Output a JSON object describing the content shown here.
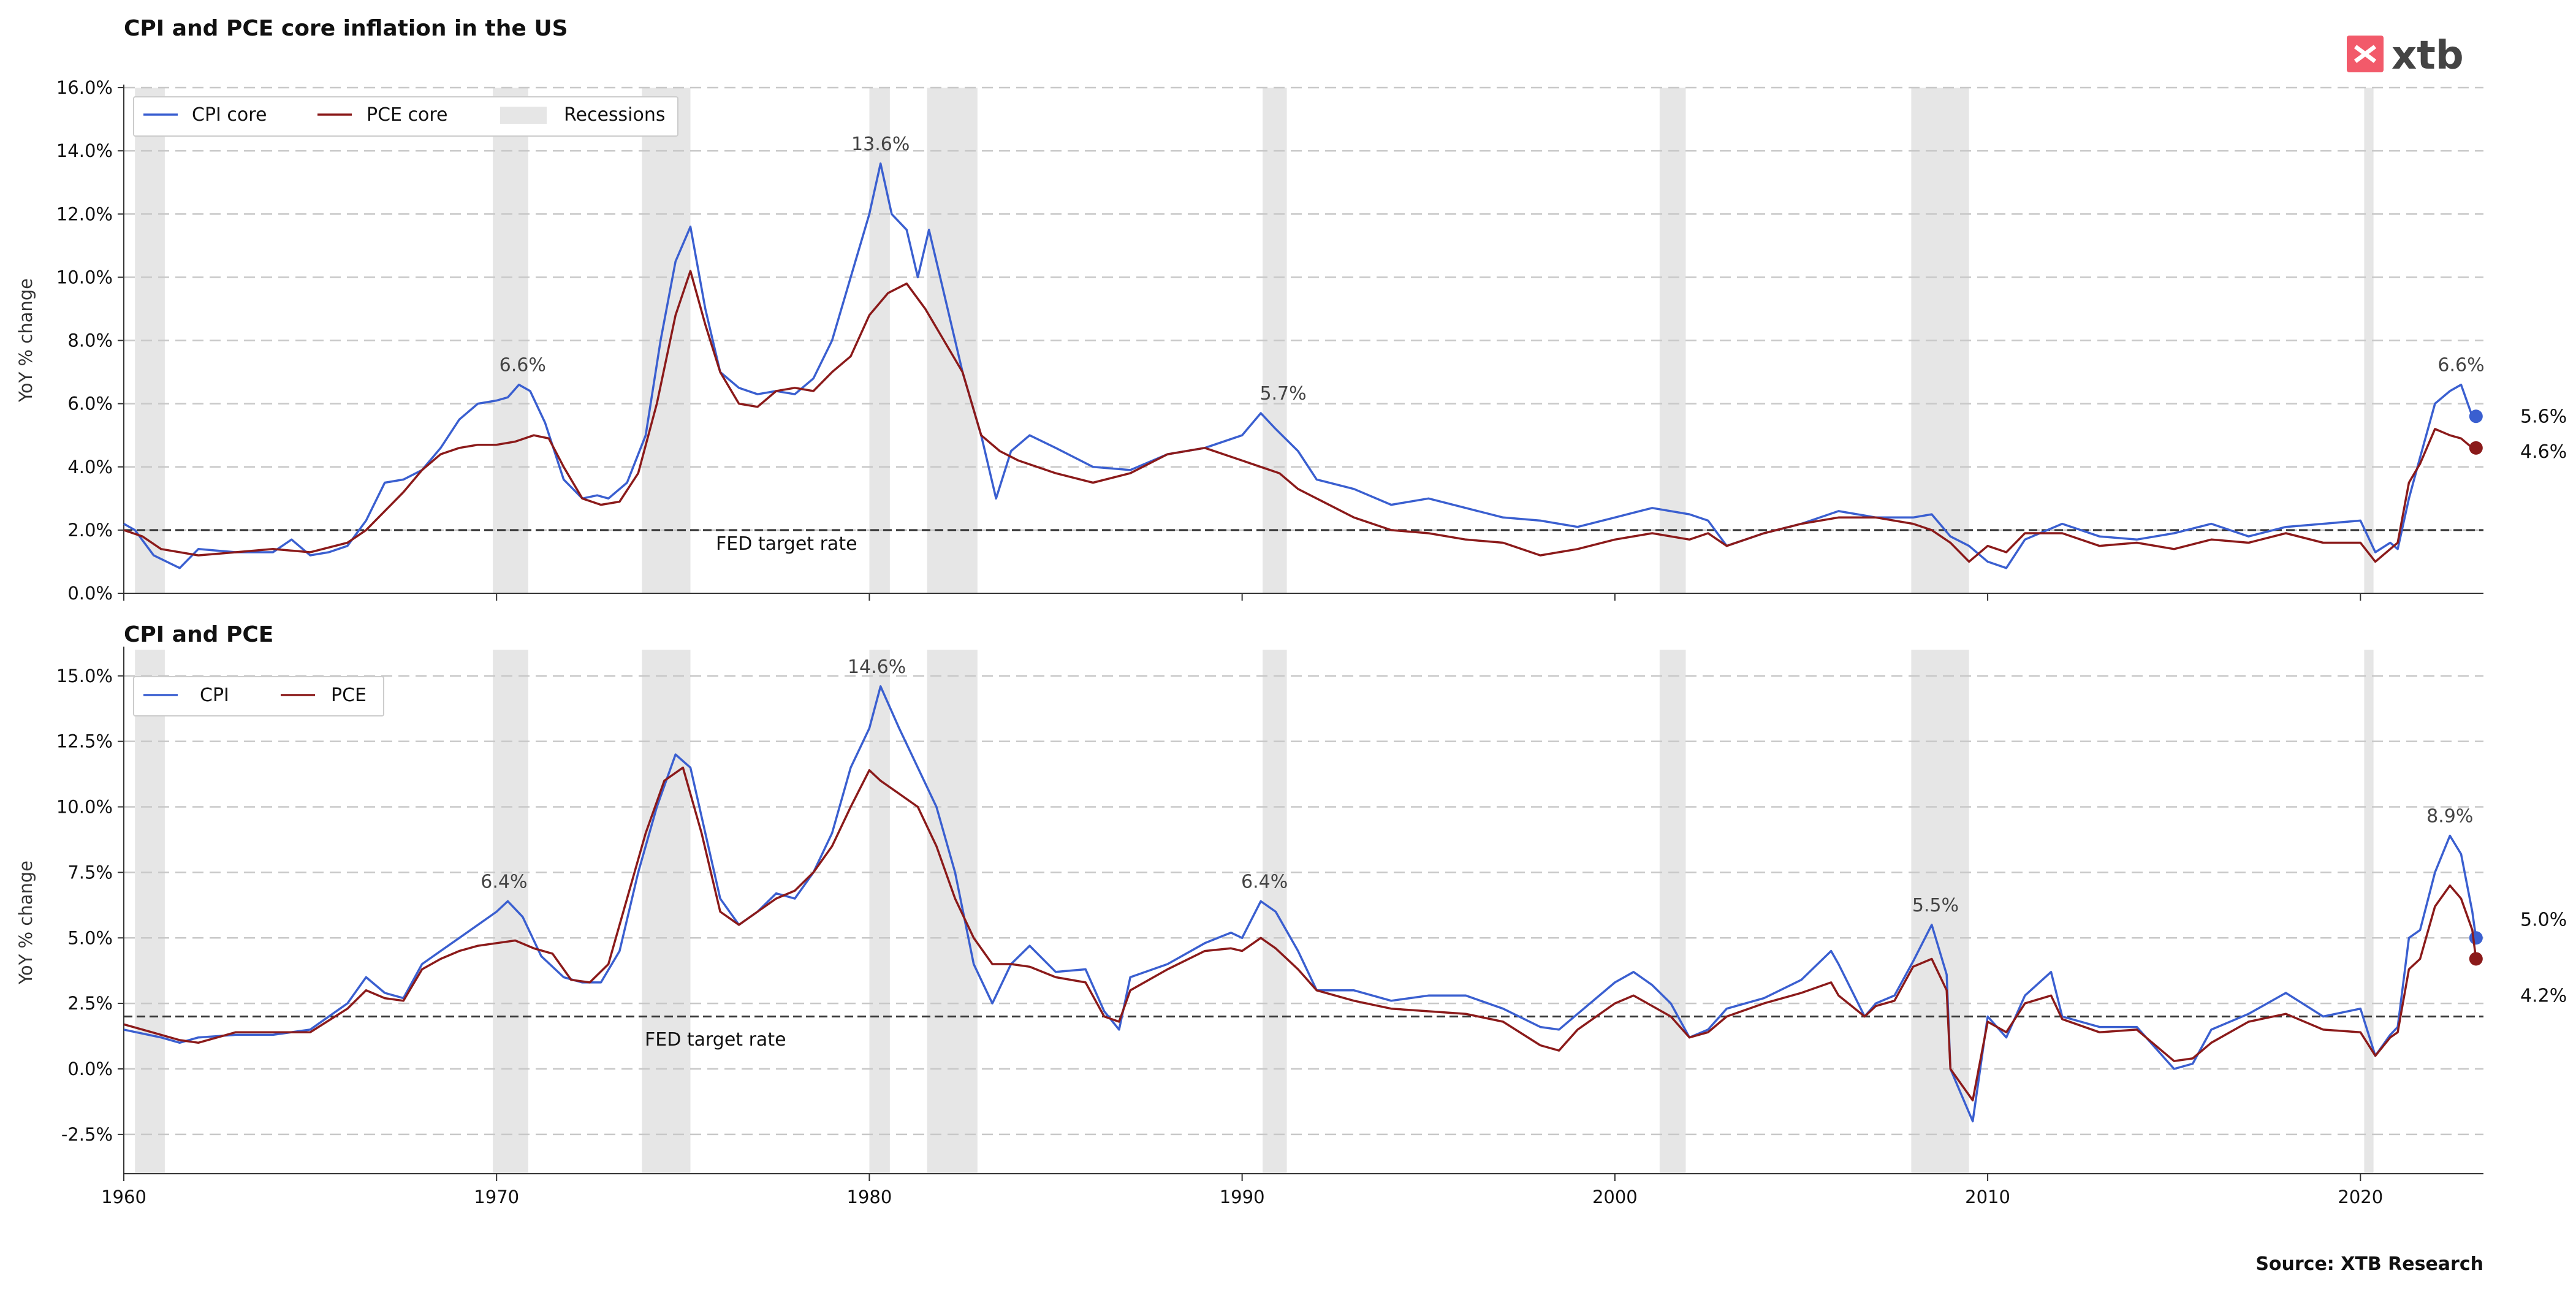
{
  "source": "Source: XTB Research",
  "logo": {
    "text": "xtb",
    "color": "#f25a6a"
  },
  "colors": {
    "cpi": "#3a5fd0",
    "pce": "#8b1a1a",
    "recession": "#e6e6e6",
    "grid": "#c8c8c8"
  },
  "recessions": [
    [
      1960.3,
      1961.1
    ],
    [
      1969.9,
      1970.85
    ],
    [
      1973.9,
      1975.2
    ],
    [
      1980.0,
      1980.55
    ],
    [
      1981.55,
      1982.9
    ],
    [
      1990.55,
      1991.2
    ],
    [
      2001.2,
      2001.9
    ],
    [
      2007.95,
      2009.5
    ],
    [
      2020.1,
      2020.35
    ]
  ],
  "chart_data": [
    {
      "type": "line",
      "title": "CPI and PCE core inflation in the US",
      "ylabel": "YoY % change",
      "ylim": [
        0,
        16
      ],
      "yticks": [
        0,
        2,
        4,
        6,
        8,
        10,
        12,
        14,
        16
      ],
      "xlim": [
        1960,
        2023.3
      ],
      "legend": {
        "placement": "top-left",
        "entries": [
          "CPI core",
          "PCE core",
          "Recessions"
        ]
      },
      "reference_line": {
        "y": 2,
        "label": "FED target rate"
      },
      "series": [
        {
          "name": "CPI core",
          "color": "#3a5fd0",
          "x": [
            1960,
            1960.3,
            1960.8,
            1961.5,
            1962,
            1963,
            1964,
            1964.5,
            1965,
            1965.5,
            1966,
            1966.5,
            1967,
            1967.5,
            1968,
            1968.5,
            1969,
            1969.5,
            1970,
            1970.3,
            1970.6,
            1970.9,
            1971.3,
            1971.8,
            1972.3,
            1972.7,
            1973,
            1973.5,
            1974,
            1974.4,
            1974.8,
            1975.2,
            1975.6,
            1976,
            1976.5,
            1977,
            1977.5,
            1978,
            1978.5,
            1979,
            1979.5,
            1980,
            1980.3,
            1980.6,
            1981,
            1981.3,
            1981.6,
            1982,
            1982.5,
            1983,
            1983.4,
            1983.8,
            1984.3,
            1985,
            1986,
            1987,
            1988,
            1989,
            1990,
            1990.5,
            1990.9,
            1991.5,
            1992,
            1993,
            1994,
            1995,
            1996,
            1997,
            1998,
            1999,
            2000,
            2001,
            2002,
            2002.5,
            2003,
            2004,
            2005,
            2006,
            2007,
            2008,
            2008.5,
            2009,
            2009.5,
            2010,
            2010.5,
            2011,
            2012,
            2013,
            2014,
            2015,
            2016,
            2017,
            2018,
            2019,
            2020,
            2020.4,
            2020.8,
            2021,
            2021.3,
            2021.6,
            2022,
            2022.4,
            2022.7,
            2023,
            2023.1
          ],
          "y": [
            2.2,
            2.0,
            1.2,
            0.8,
            1.4,
            1.3,
            1.3,
            1.7,
            1.2,
            1.3,
            1.5,
            2.3,
            3.5,
            3.6,
            3.9,
            4.6,
            5.5,
            6.0,
            6.1,
            6.2,
            6.6,
            6.4,
            5.4,
            3.6,
            3.0,
            3.1,
            3.0,
            3.5,
            5.0,
            8.0,
            10.5,
            11.6,
            9.0,
            7.0,
            6.5,
            6.3,
            6.4,
            6.3,
            6.8,
            8.0,
            10.0,
            12.0,
            13.6,
            12.0,
            11.5,
            10.0,
            11.5,
            9.5,
            7.0,
            5.0,
            3.0,
            4.5,
            5.0,
            4.6,
            4.0,
            3.9,
            4.4,
            4.6,
            5.0,
            5.7,
            5.2,
            4.5,
            3.6,
            3.3,
            2.8,
            3.0,
            2.7,
            2.4,
            2.3,
            2.1,
            2.4,
            2.7,
            2.5,
            2.3,
            1.5,
            1.9,
            2.2,
            2.6,
            2.4,
            2.4,
            2.5,
            1.8,
            1.5,
            1.0,
            0.8,
            1.7,
            2.2,
            1.8,
            1.7,
            1.9,
            2.2,
            1.8,
            2.1,
            2.2,
            2.3,
            1.3,
            1.6,
            1.4,
            3.0,
            4.3,
            6.0,
            6.4,
            6.6,
            5.6,
            5.6
          ]
        },
        {
          "name": "PCE core",
          "color": "#8b1a1a",
          "x": [
            1960,
            1960.5,
            1961,
            1962,
            1963,
            1964,
            1965,
            1966,
            1966.5,
            1967,
            1967.5,
            1968,
            1968.5,
            1969,
            1969.5,
            1970,
            1970.5,
            1971,
            1971.4,
            1971.8,
            1972.3,
            1972.8,
            1973.3,
            1973.8,
            1974.3,
            1974.8,
            1975.2,
            1975.6,
            1976,
            1976.5,
            1977,
            1977.5,
            1978,
            1978.5,
            1979,
            1979.5,
            1980,
            1980.5,
            1981,
            1981.5,
            1982,
            1982.5,
            1983,
            1983.5,
            1984,
            1985,
            1986,
            1987,
            1988,
            1989,
            1990,
            1990.5,
            1991,
            1991.5,
            1992,
            1993,
            1994,
            1995,
            1996,
            1997,
            1998,
            1999,
            2000,
            2001,
            2002,
            2002.5,
            2003,
            2004,
            2005,
            2006,
            2007,
            2008,
            2008.5,
            2009,
            2009.5,
            2010,
            2010.5,
            2011,
            2012,
            2013,
            2014,
            2015,
            2016,
            2017,
            2018,
            2019,
            2020,
            2020.4,
            2020.8,
            2021,
            2021.3,
            2021.6,
            2022,
            2022.4,
            2022.7,
            2023,
            2023.1
          ],
          "y": [
            2.0,
            1.8,
            1.4,
            1.2,
            1.3,
            1.4,
            1.3,
            1.6,
            2.0,
            2.6,
            3.2,
            3.9,
            4.4,
            4.6,
            4.7,
            4.7,
            4.8,
            5.0,
            4.9,
            4.0,
            3.0,
            2.8,
            2.9,
            3.8,
            6.0,
            8.8,
            10.2,
            8.5,
            7.0,
            6.0,
            5.9,
            6.4,
            6.5,
            6.4,
            7.0,
            7.5,
            8.8,
            9.5,
            9.8,
            9.0,
            8.0,
            7.0,
            5.0,
            4.5,
            4.2,
            3.8,
            3.5,
            3.8,
            4.4,
            4.6,
            4.2,
            4.0,
            3.8,
            3.3,
            3.0,
            2.4,
            2.0,
            1.9,
            1.7,
            1.6,
            1.2,
            1.4,
            1.7,
            1.9,
            1.7,
            1.9,
            1.5,
            1.9,
            2.2,
            2.4,
            2.4,
            2.2,
            2.0,
            1.6,
            1.0,
            1.5,
            1.3,
            1.9,
            1.9,
            1.5,
            1.6,
            1.4,
            1.7,
            1.6,
            1.9,
            1.6,
            1.6,
            1.0,
            1.4,
            1.6,
            3.5,
            4.1,
            5.2,
            5.0,
            4.9,
            4.6,
            4.6
          ]
        }
      ],
      "annotations": [
        {
          "x": 1970.7,
          "y": 6.6,
          "text": "6.6%"
        },
        {
          "x": 1980.3,
          "y": 13.6,
          "text": "13.6%"
        },
        {
          "x": 1991.1,
          "y": 5.7,
          "text": "5.7%"
        },
        {
          "x": 2022.7,
          "y": 6.6,
          "text": "6.6%"
        }
      ],
      "end_labels": [
        {
          "series": "CPI core",
          "text": "5.6%",
          "y": 5.6
        },
        {
          "series": "PCE core",
          "text": "4.6%",
          "y": 4.6
        }
      ]
    },
    {
      "type": "line",
      "title": "CPI and PCE",
      "ylabel": "YoY % change",
      "ylim": [
        -4,
        16
      ],
      "yticks": [
        -2.5,
        0,
        2.5,
        5,
        7.5,
        10,
        12.5,
        15
      ],
      "xlim": [
        1960,
        2023.3
      ],
      "xticks": [
        1960,
        1970,
        1980,
        1990,
        2000,
        2010,
        2020
      ],
      "legend": {
        "placement": "top-left",
        "entries": [
          "CPI",
          "PCE"
        ]
      },
      "reference_line": {
        "y": 2,
        "label": "FED target rate"
      },
      "series": [
        {
          "name": "CPI",
          "color": "#3a5fd0",
          "x": [
            1960,
            1961,
            1961.5,
            1962,
            1963,
            1964,
            1965,
            1966,
            1966.5,
            1967,
            1967.5,
            1968,
            1968.5,
            1969,
            1969.5,
            1970,
            1970.3,
            1970.7,
            1971.2,
            1971.8,
            1972.3,
            1972.8,
            1973.3,
            1973.8,
            1974.3,
            1974.8,
            1975.2,
            1975.6,
            1976,
            1976.5,
            1977,
            1977.5,
            1978,
            1978.5,
            1979,
            1979.5,
            1980,
            1980.3,
            1980.8,
            1981.3,
            1981.8,
            1982.3,
            1982.8,
            1983.3,
            1983.8,
            1984.3,
            1985,
            1985.8,
            1986.3,
            1986.7,
            1987,
            1988,
            1989,
            1989.7,
            1990,
            1990.5,
            1990.9,
            1991.5,
            1992,
            1993,
            1994,
            1995,
            1996,
            1997,
            1998,
            1998.5,
            1999,
            2000,
            2000.5,
            2001,
            2001.5,
            2002,
            2002.5,
            2003,
            2004,
            2005,
            2005.8,
            2006,
            2006.7,
            2007,
            2007.5,
            2008,
            2008.5,
            2008.9,
            2009,
            2009.3,
            2009.6,
            2010,
            2010.5,
            2011,
            2011.7,
            2012,
            2013,
            2014,
            2015,
            2015.5,
            2016,
            2017,
            2018,
            2019,
            2020,
            2020.4,
            2020.8,
            2021,
            2021.3,
            2021.6,
            2022,
            2022.4,
            2022.7,
            2023,
            2023.1
          ],
          "y": [
            1.5,
            1.2,
            1.0,
            1.2,
            1.3,
            1.3,
            1.5,
            2.5,
            3.5,
            2.9,
            2.7,
            4.0,
            4.5,
            5.0,
            5.5,
            6.0,
            6.4,
            5.8,
            4.3,
            3.5,
            3.3,
            3.3,
            4.5,
            7.5,
            10.0,
            12.0,
            11.5,
            9.0,
            6.5,
            5.5,
            6.0,
            6.7,
            6.5,
            7.5,
            9.0,
            11.5,
            13.0,
            14.6,
            13.0,
            11.5,
            10.0,
            7.5,
            4.0,
            2.5,
            4.0,
            4.7,
            3.7,
            3.8,
            2.2,
            1.5,
            3.5,
            4.0,
            4.8,
            5.2,
            5.0,
            6.4,
            6.0,
            4.5,
            3.0,
            3.0,
            2.6,
            2.8,
            2.8,
            2.3,
            1.6,
            1.5,
            2.1,
            3.3,
            3.7,
            3.2,
            2.5,
            1.2,
            1.5,
            2.3,
            2.7,
            3.4,
            4.5,
            4.0,
            2.0,
            2.5,
            2.8,
            4.1,
            5.5,
            3.6,
            0.0,
            -1.0,
            -2.0,
            2.0,
            1.2,
            2.8,
            3.7,
            2.0,
            1.6,
            1.6,
            0.0,
            0.2,
            1.5,
            2.1,
            2.9,
            2.0,
            2.3,
            0.5,
            1.3,
            1.6,
            5.0,
            5.3,
            7.5,
            8.9,
            8.2,
            6.0,
            5.0
          ]
        },
        {
          "name": "PCE",
          "color": "#8b1a1a",
          "x": [
            1960,
            1961,
            1961.5,
            1962,
            1963,
            1964,
            1965,
            1966,
            1966.5,
            1967,
            1967.5,
            1968,
            1968.5,
            1969,
            1969.5,
            1970,
            1970.5,
            1971,
            1971.5,
            1972,
            1972.5,
            1973,
            1973.5,
            1974,
            1974.5,
            1975,
            1975.5,
            1976,
            1976.5,
            1977,
            1977.5,
            1978,
            1978.5,
            1979,
            1979.5,
            1980,
            1980.3,
            1980.8,
            1981.3,
            1981.8,
            1982.3,
            1982.8,
            1983.3,
            1983.8,
            1984.3,
            1985,
            1985.8,
            1986.3,
            1986.7,
            1987,
            1988,
            1989,
            1989.7,
            1990,
            1990.5,
            1990.9,
            1991.5,
            1992,
            1993,
            1994,
            1995,
            1996,
            1997,
            1998,
            1998.5,
            1999,
            2000,
            2000.5,
            2001,
            2001.5,
            2002,
            2002.5,
            2003,
            2004,
            2005,
            2005.8,
            2006,
            2006.7,
            2007,
            2007.5,
            2008,
            2008.5,
            2008.9,
            2009,
            2009.3,
            2009.6,
            2010,
            2010.5,
            2011,
            2011.7,
            2012,
            2013,
            2014,
            2015,
            2015.5,
            2016,
            2017,
            2018,
            2019,
            2020,
            2020.4,
            2020.8,
            2021,
            2021.3,
            2021.6,
            2022,
            2022.4,
            2022.7,
            2023,
            2023.1
          ],
          "y": [
            1.7,
            1.3,
            1.1,
            1.0,
            1.4,
            1.4,
            1.4,
            2.3,
            3.0,
            2.7,
            2.6,
            3.8,
            4.2,
            4.5,
            4.7,
            4.8,
            4.9,
            4.6,
            4.4,
            3.4,
            3.3,
            4.0,
            6.5,
            9.0,
            11.0,
            11.5,
            9.0,
            6.0,
            5.5,
            6.0,
            6.5,
            6.8,
            7.5,
            8.5,
            10.0,
            11.4,
            11.0,
            10.5,
            10.0,
            8.5,
            6.5,
            5.0,
            4.0,
            4.0,
            3.9,
            3.5,
            3.3,
            2.0,
            1.8,
            3.0,
            3.8,
            4.5,
            4.6,
            4.5,
            5.0,
            4.6,
            3.8,
            3.0,
            2.6,
            2.3,
            2.2,
            2.1,
            1.8,
            0.9,
            0.7,
            1.5,
            2.5,
            2.8,
            2.4,
            2.0,
            1.2,
            1.4,
            2.0,
            2.5,
            2.9,
            3.3,
            2.8,
            2.0,
            2.4,
            2.6,
            3.9,
            4.2,
            3.0,
            0.0,
            -0.6,
            -1.2,
            1.8,
            1.4,
            2.5,
            2.8,
            1.9,
            1.4,
            1.5,
            0.3,
            0.4,
            1.0,
            1.8,
            2.1,
            1.5,
            1.4,
            0.5,
            1.2,
            1.4,
            3.8,
            4.2,
            6.2,
            7.0,
            6.5,
            5.3,
            4.2
          ]
        }
      ],
      "annotations": [
        {
          "x": 1970.2,
          "y": 6.4,
          "text": "6.4%"
        },
        {
          "x": 1980.2,
          "y": 14.6,
          "text": "14.6%"
        },
        {
          "x": 1990.6,
          "y": 6.4,
          "text": "6.4%"
        },
        {
          "x": 2008.6,
          "y": 5.5,
          "text": "5.5%"
        },
        {
          "x": 2022.4,
          "y": 8.9,
          "text": "8.9%"
        }
      ],
      "end_labels": [
        {
          "series": "CPI",
          "text": "5.0%",
          "y": 5.0
        },
        {
          "series": "PCE",
          "text": "4.2%",
          "y": 4.2
        }
      ]
    }
  ]
}
